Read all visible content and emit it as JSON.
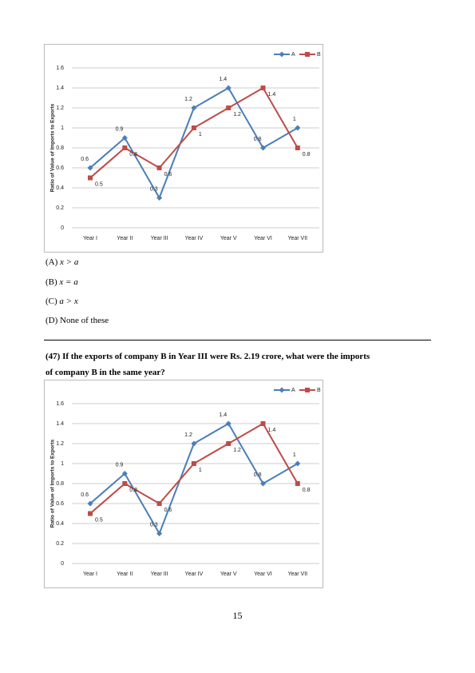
{
  "chart_data": [
    {
      "type": "line",
      "y_label": "Ratio of Value of Imports to Exports",
      "categories": [
        "Year I",
        "Year II",
        "Year III",
        "Year IV",
        "Year V",
        "Year VI",
        "Year VII"
      ],
      "series": [
        {
          "name": "A",
          "color": "#4a7ebb",
          "values": [
            0.6,
            0.9,
            0.3,
            1.2,
            1.4,
            0.8,
            1
          ]
        },
        {
          "name": "B",
          "color": "#be4b48",
          "values": [
            0.5,
            0.8,
            0.6,
            1,
            1.2,
            1.4,
            0.8
          ]
        }
      ],
      "ylim": [
        0,
        1.6
      ],
      "yticks": [
        0,
        0.2,
        0.4,
        0.6,
        0.8,
        1,
        1.2,
        1.4,
        1.6
      ],
      "grid": true,
      "legend": "top-right"
    },
    {
      "type": "line",
      "y_label": "Ratio of Value of Imports to Exports",
      "categories": [
        "Year I",
        "Year II",
        "Year III",
        "Year IV",
        "Year V",
        "Year VI",
        "Year VII"
      ],
      "series": [
        {
          "name": "A",
          "color": "#4a7ebb",
          "values": [
            0.6,
            0.9,
            0.3,
            1.2,
            1.4,
            0.8,
            1
          ]
        },
        {
          "name": "B",
          "color": "#be4b48",
          "values": [
            0.5,
            0.8,
            0.6,
            1,
            1.2,
            1.4,
            0.8
          ]
        }
      ],
      "ylim": [
        0,
        1.6
      ],
      "yticks": [
        0,
        0.2,
        0.4,
        0.6,
        0.8,
        1,
        1.2,
        1.4,
        1.6
      ],
      "grid": true,
      "legend": "top-right"
    }
  ],
  "options": [
    {
      "label": "(A)",
      "text": "x > a"
    },
    {
      "label": "(B)",
      "text": "x = a"
    },
    {
      "label": "(C)",
      "text": "a > x"
    },
    {
      "label": "(D)",
      "text": "None of these"
    }
  ],
  "question": {
    "number": "(47)",
    "lines": [
      "If the exports of company B in Year III were Rs. 2.19 crore, what were the imports",
      "of company B in the same year?"
    ]
  },
  "page_number": "15"
}
